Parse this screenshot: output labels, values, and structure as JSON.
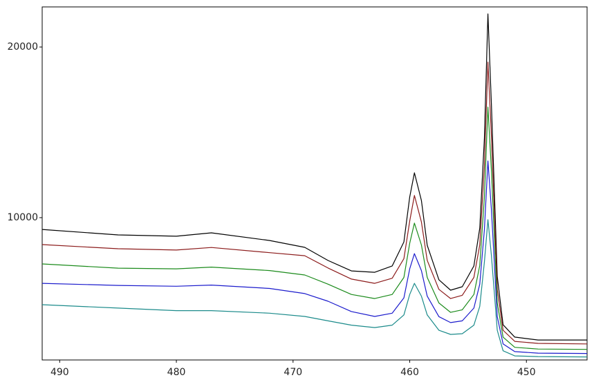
{
  "chart_data": {
    "type": "line",
    "x": [
      491.5,
      485,
      480,
      477,
      472,
      469,
      467,
      465,
      463,
      461.5,
      460.5,
      460,
      459.6,
      459,
      458.5,
      457.5,
      456.5,
      455.5,
      454.5,
      454,
      453.6,
      453.3,
      453,
      452.5,
      452,
      451,
      449,
      444.8
    ],
    "series": [
      {
        "color": "#000000",
        "values": [
          9310,
          8990,
          8910,
          9110,
          8660,
          8260,
          7490,
          6880,
          6800,
          7170,
          8580,
          11210,
          12630,
          11010,
          8380,
          6360,
          5750,
          5950,
          7170,
          9390,
          14660,
          21940,
          16680,
          6560,
          3720,
          3000,
          2830,
          2830
        ]
      },
      {
        "color": "#8b1a1a",
        "values": [
          8420,
          8180,
          8100,
          8250,
          7950,
          7770,
          7050,
          6400,
          6150,
          6450,
          7600,
          9800,
          11300,
          9750,
          7500,
          5800,
          5260,
          5450,
          6500,
          8400,
          13000,
          19110,
          14800,
          5800,
          3400,
          2750,
          2630,
          2600
        ]
      },
      {
        "color": "#1a8a1a",
        "values": [
          7290,
          7040,
          7000,
          7100,
          6900,
          6640,
          6100,
          5500,
          5260,
          5500,
          6500,
          8500,
          9680,
          8400,
          6500,
          5000,
          4450,
          4600,
          5500,
          7200,
          11200,
          16480,
          12800,
          5000,
          3000,
          2400,
          2300,
          2280
        ]
      },
      {
        "color": "#1a1acc",
        "values": [
          6150,
          6030,
          5980,
          6050,
          5850,
          5550,
          5100,
          4500,
          4210,
          4400,
          5300,
          7000,
          7890,
          6900,
          5400,
          4200,
          3850,
          3950,
          4700,
          6100,
          9300,
          13320,
          10500,
          4200,
          2600,
          2150,
          2060,
          2040
        ]
      },
      {
        "color": "#1a8a8a",
        "values": [
          4900,
          4700,
          4550,
          4550,
          4400,
          4210,
          3950,
          3700,
          3560,
          3700,
          4300,
          5500,
          6150,
          5400,
          4300,
          3400,
          3160,
          3200,
          3700,
          4800,
          7400,
          9880,
          7800,
          3400,
          2200,
          1900,
          1860,
          1840
        ]
      }
    ],
    "xlim": [
      491.5,
      444.8
    ],
    "xticks": [
      490,
      480,
      470,
      460,
      450
    ],
    "ylim": [
      1660,
      22350
    ],
    "yticks": [
      10000,
      20000
    ]
  }
}
